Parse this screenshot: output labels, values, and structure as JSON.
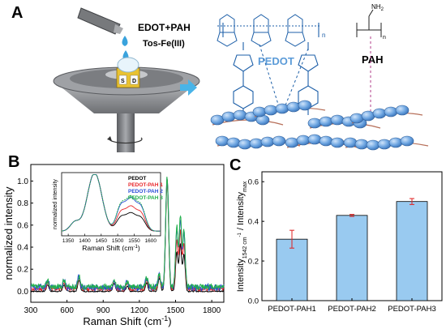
{
  "panelA": {
    "label": "A",
    "reagent1": "EDOT+PAH",
    "reagent2": "Tos-Fe(III)",
    "pedot_label": "PEDOT",
    "pah_label": "PAH",
    "sample_s": "S",
    "sample_d": "D",
    "nh2": "NH",
    "nh2_sub": "2",
    "subscript_n": "n"
  },
  "panelB": {
    "label": "B",
    "ylabel": "normalized intensity",
    "xlabel_main": "Raman Shift (cm",
    "xlabel_exp": "-1",
    "xlabel_end": ")",
    "xticks": [
      "300",
      "600",
      "900",
      "1200",
      "1500",
      "1800"
    ],
    "yticks": [
      "0.0",
      "0.2",
      "0.4",
      "0.6",
      "0.8",
      "1.0"
    ],
    "inset": {
      "ylabel": "normalized intensity",
      "xlabel_main": "Raman Shift (cm",
      "xlabel_exp": "-1",
      "xlabel_end": ")",
      "xticks": [
        "1350",
        "1400",
        "1450",
        "1500",
        "1550",
        "1600"
      ],
      "legend": [
        {
          "name": "PEDOT",
          "color": "#000000"
        },
        {
          "name": "PEDOT-PAH 1",
          "color": "#e8262a"
        },
        {
          "name": "PEDOT-PAH 2",
          "color": "#2a4fd6"
        },
        {
          "name": "PEDOT-PAH 3",
          "color": "#22b14c"
        }
      ]
    }
  },
  "panelC": {
    "label": "C",
    "ylabel_main": "Intensity",
    "ylabel_sub1": "1542 cm",
    "ylabel_sup": "-1",
    "ylabel_mid": " / Intensity",
    "ylabel_sub2": "max",
    "yticks": [
      "0.0",
      "0.2",
      "0.4",
      "0.6"
    ]
  },
  "chart_data": [
    {
      "type": "line",
      "series": [
        {
          "name": "PEDOT",
          "color": "#000000"
        },
        {
          "name": "PEDOT-PAH 1",
          "color": "#e8262a"
        },
        {
          "name": "PEDOT-PAH 2",
          "color": "#2a4fd6"
        },
        {
          "name": "PEDOT-PAH 3",
          "color": "#22b14c"
        }
      ],
      "xlabel": "Raman Shift (cm-1)",
      "ylabel": "normalized intensity",
      "xlim": [
        300,
        1900
      ],
      "ylim": [
        -0.1,
        1.15
      ],
      "peaks_x": [
        440,
        575,
        700,
        990,
        1100,
        1260,
        1365,
        1430,
        1510,
        1540,
        1570
      ],
      "peaks_y": [
        0.06,
        0.06,
        0.1,
        0.07,
        0.05,
        0.08,
        0.12,
        1.0,
        0.42,
        0.5,
        0.39
      ]
    },
    {
      "type": "bar",
      "categories": [
        "PEDOT-PAH1",
        "PEDOT-PAH2",
        "PEDOT-PAH3"
      ],
      "values": [
        0.31,
        0.43,
        0.5
      ],
      "errors": [
        0.045,
        0.005,
        0.015
      ],
      "ylim": [
        0,
        0.65
      ],
      "color": "#99caf0"
    }
  ]
}
